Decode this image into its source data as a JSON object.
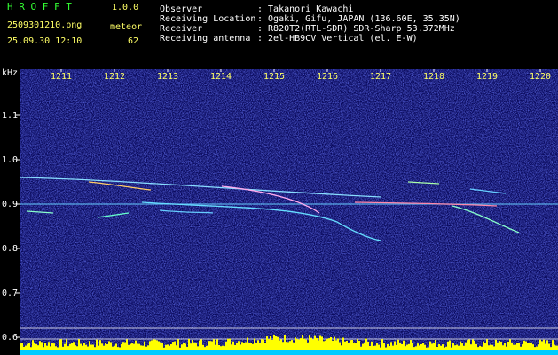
{
  "header": {
    "app_name": "H R O F F T",
    "version": "1.0.0",
    "filename": "2509301210.png",
    "datetime": "25.09.30 12:10",
    "meteor_label": "meteor",
    "meteor_count": "62"
  },
  "info": [
    {
      "label": "Observer",
      "value": ": Takanori Kawachi"
    },
    {
      "label": "Receiving Location",
      "value": ": Ogaki, Gifu, JAPAN (136.60E, 35.35N)"
    },
    {
      "label": "Receiver",
      "value": ": R820T2(RTL-SDR) SDR-Sharp 53.372MHz"
    },
    {
      "label": "Receiving antenna",
      "value": ": 2el-HB9CV Vertical (el. E-W)"
    }
  ],
  "axes": {
    "y_unit": "kHz",
    "x_ticks": [
      "1211",
      "1212",
      "1213",
      "1214",
      "1215",
      "1216",
      "1217",
      "1218",
      "1219",
      "1220"
    ],
    "y_ticks": [
      "1.1",
      "1.0",
      "0.9",
      "0.8",
      "0.7",
      "0.6"
    ]
  }
}
